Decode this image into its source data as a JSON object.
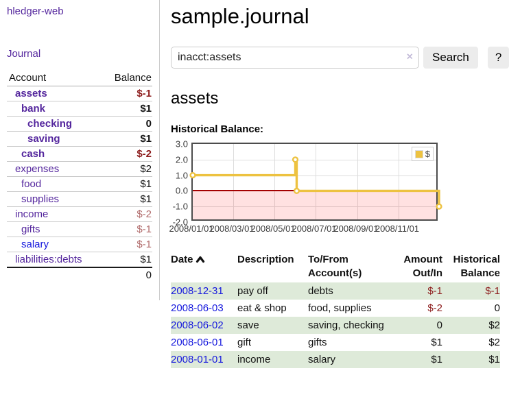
{
  "app": {
    "brand": "hledger-web",
    "nav": {
      "journal": "Journal"
    }
  },
  "page": {
    "title": "sample.journal"
  },
  "search": {
    "value": "inacct:assets",
    "clear_icon": "×",
    "search_label": "Search",
    "help_label": "?"
  },
  "sidebar": {
    "header": {
      "account": "Account",
      "balance": "Balance"
    },
    "accounts": [
      {
        "name": "assets",
        "balance": "$-1",
        "level": 1,
        "bold": true,
        "balance_state": "negative"
      },
      {
        "name": "bank",
        "balance": "$1",
        "level": 2,
        "bold": true,
        "balance_state": "positive"
      },
      {
        "name": "checking",
        "balance": "0",
        "level": 3,
        "bold": true,
        "balance_state": "zero"
      },
      {
        "name": "saving",
        "balance": "$1",
        "level": 3,
        "bold": true,
        "balance_state": "positive"
      },
      {
        "name": "cash",
        "balance": "$-2",
        "level": 2,
        "bold": true,
        "balance_state": "negative"
      },
      {
        "name": "expenses",
        "balance": "$2",
        "level": 1,
        "bold": false,
        "balance_state": "positive"
      },
      {
        "name": "food",
        "balance": "$1",
        "level": 2,
        "bold": false,
        "balance_state": "positive"
      },
      {
        "name": "supplies",
        "balance": "$1",
        "level": 2,
        "bold": false,
        "balance_state": "positive"
      },
      {
        "name": "income",
        "balance": "$-2",
        "level": 1,
        "bold": false,
        "balance_state": "negative-soft"
      },
      {
        "name": "gifts",
        "balance": "$-1",
        "level": 2,
        "bold": false,
        "balance_state": "negative-soft"
      },
      {
        "name": "salary",
        "balance": "$-1",
        "level": 2,
        "bold": false,
        "balance_state": "negative-soft"
      },
      {
        "name": "liabilities:debts",
        "balance": "$1",
        "level": 1,
        "bold": false,
        "balance_state": "positive"
      }
    ],
    "total": "0"
  },
  "account_page": {
    "heading": "assets",
    "chart_title": "Historical Balance:"
  },
  "chart_data": {
    "type": "line",
    "step": true,
    "title": "Historical Balance",
    "series": [
      {
        "name": "$",
        "color": "#edc240",
        "points": [
          [
            "2008-01-01",
            1
          ],
          [
            "2008-06-01",
            2
          ],
          [
            "2008-06-03",
            0
          ],
          [
            "2008-12-31",
            -1
          ]
        ]
      }
    ],
    "xlim": [
      "2008-01-01",
      "2008-12-31"
    ],
    "ylim": [
      -2,
      3
    ],
    "xticks": [
      {
        "label": "2008/01/01",
        "date": "2008-01-01"
      },
      {
        "label": "2008/03/01",
        "date": "2008-03-01"
      },
      {
        "label": "2008/05/01",
        "date": "2008-05-01"
      },
      {
        "label": "2008/07/01",
        "date": "2008-07-01"
      },
      {
        "label": "2008/09/01",
        "date": "2008-09-01"
      },
      {
        "label": "2008/11/01",
        "date": "2008-11-01"
      }
    ],
    "yticks": [
      {
        "label": "3.0",
        "value": 3
      },
      {
        "label": "2.0",
        "value": 2
      },
      {
        "label": "1.0",
        "value": 1
      },
      {
        "label": "0.0",
        "value": 0
      },
      {
        "label": "-1.0",
        "value": -1
      },
      {
        "label": "-2.0",
        "value": -2
      }
    ],
    "grid": true,
    "legend_position": "top-right",
    "negative_region_fill": "#fbdcdc",
    "zero_line_color": "#a40000"
  },
  "register": {
    "headers": {
      "date": "Date",
      "description": "Description",
      "tofrom": "To/From Account(s)",
      "amount": "Amount Out/In",
      "balance": "Historical Balance"
    },
    "rows": [
      {
        "date": "2008-12-31",
        "description": "pay off",
        "accounts": "debts",
        "amount": "$-1",
        "balance": "$-1",
        "amount_negative": true,
        "balance_negative": true,
        "shaded": true
      },
      {
        "date": "2008-06-03",
        "description": "eat & shop",
        "accounts": "food, supplies",
        "amount": "$-2",
        "balance": "0",
        "amount_negative": true,
        "balance_negative": false,
        "shaded": false
      },
      {
        "date": "2008-06-02",
        "description": "save",
        "accounts": "saving, checking",
        "amount": "0",
        "balance": "$2",
        "amount_negative": false,
        "balance_negative": false,
        "shaded": true
      },
      {
        "date": "2008-06-01",
        "description": "gift",
        "accounts": "gifts",
        "amount": "$1",
        "balance": "$2",
        "amount_negative": false,
        "balance_negative": false,
        "shaded": false
      },
      {
        "date": "2008-01-01",
        "description": "income",
        "accounts": "salary",
        "amount": "$1",
        "balance": "$1",
        "amount_negative": false,
        "balance_negative": false,
        "shaded": true
      }
    ]
  }
}
